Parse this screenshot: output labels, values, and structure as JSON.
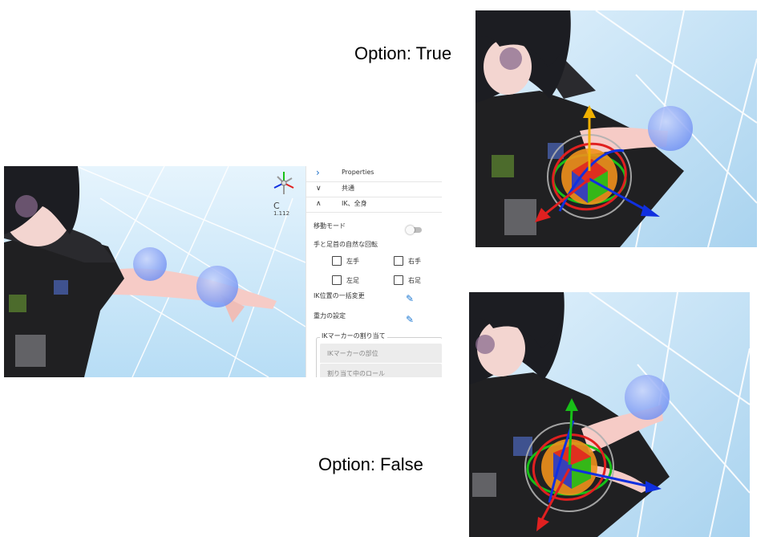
{
  "captions": {
    "option_true": "Option: True",
    "option_false": "Option: False"
  },
  "viewport_overlay": {
    "axis_letter": "C",
    "axis_value": "1.112"
  },
  "panel": {
    "rows": [
      {
        "label": "Properties",
        "chevron": "chevron-right-icon"
      },
      {
        "label": "共通",
        "chevron": "chevron-down-icon"
      },
      {
        "label": "IK、全身",
        "chevron": "chevron-up-icon"
      }
    ],
    "move_mode_label": "移動モード",
    "natural_rotation_label": "手と足首の自然な回転",
    "checkboxes": {
      "left_hand": "左手",
      "right_hand": "右手",
      "left_foot": "左足",
      "right_foot": "右足"
    },
    "ik_position_label": "IK位置の一括変更",
    "gravity_label": "重力の設定",
    "ik_marker_assign_legend": "IKマーカーの割り当て",
    "ik_marker_part_placeholder": "IKマーカーの部位",
    "assigned_role_placeholder": "割り当て中のロール"
  },
  "colors": {
    "sky": "#cfe9fb",
    "floor": "#a9d3ef",
    "grid": "#ffffff",
    "hair": "#1c1d22",
    "skin": "#f6cbc6",
    "dress": "#202022",
    "ik_sphere": "#6f8ff2",
    "gizmo_x": "#e02020",
    "gizmo_y": "#f0b000",
    "gizmo_z": "#1030e0",
    "gizmo_green": "#18c018",
    "gizmo_orange": "#f0901c",
    "accent": "#1976d2"
  }
}
